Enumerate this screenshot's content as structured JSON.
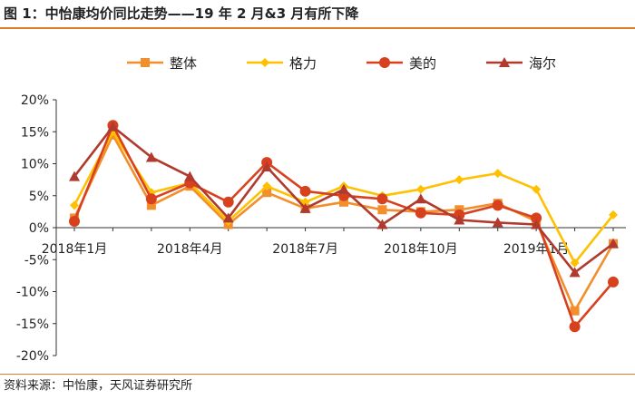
{
  "header": {
    "title": "图 1：中怡康均价同比走势——19 年 2 月&3 月有所下降"
  },
  "footer": {
    "source": "资料来源：中怡康，天风证券研究所"
  },
  "chart_data": {
    "type": "line",
    "title": "",
    "xlabel": "",
    "ylabel": "",
    "ylim": [
      -20,
      20
    ],
    "y_ticks": [
      "20%",
      "15%",
      "10%",
      "5%",
      "0%",
      "-5%",
      "-10%",
      "-15%",
      "-20%"
    ],
    "y_tick_values": [
      20,
      15,
      10,
      5,
      0,
      -5,
      -10,
      -15,
      -20
    ],
    "x_tick_labels": [
      "2018年1月",
      "2018年4月",
      "2018年7月",
      "2018年10月",
      "2019年1月"
    ],
    "x_tick_index": [
      0,
      3,
      6,
      9,
      12
    ],
    "x": [
      "2018-01",
      "2018-02",
      "2018-03",
      "2018-04",
      "2018-05",
      "2018-06",
      "2018-07",
      "2018-08",
      "2018-09",
      "2018-10",
      "2018-11",
      "2018-12",
      "2019-01",
      "2019-02",
      "2019-03"
    ],
    "legend_position": "top",
    "grid": false,
    "series": [
      {
        "name": "整体",
        "color": "#f28e2b",
        "marker": "square",
        "values": [
          1.5,
          14.5,
          3.5,
          6.5,
          0.5,
          5.5,
          3.0,
          4.0,
          2.8,
          2.5,
          2.8,
          3.8,
          1.0,
          -13.0,
          -2.5
        ]
      },
      {
        "name": "格力",
        "color": "#ffc000",
        "marker": "diamond",
        "values": [
          3.5,
          15.0,
          5.5,
          7.0,
          1.0,
          6.5,
          4.0,
          6.5,
          5.0,
          6.0,
          7.5,
          8.5,
          6.0,
          -5.5,
          2.0
        ]
      },
      {
        "name": "美的",
        "color": "#d8411e",
        "marker": "circle",
        "values": [
          1.0,
          16.0,
          4.5,
          7.0,
          4.0,
          10.2,
          5.7,
          5.0,
          4.5,
          2.3,
          2.0,
          3.5,
          1.5,
          -15.5,
          -8.5
        ]
      },
      {
        "name": "海尔",
        "color": "#b03a2e",
        "marker": "triangle",
        "values": [
          8.0,
          15.8,
          11.0,
          8.0,
          1.5,
          9.5,
          3.0,
          6.0,
          0.5,
          4.5,
          1.2,
          0.8,
          0.5,
          -7.0,
          -2.5
        ]
      }
    ]
  }
}
